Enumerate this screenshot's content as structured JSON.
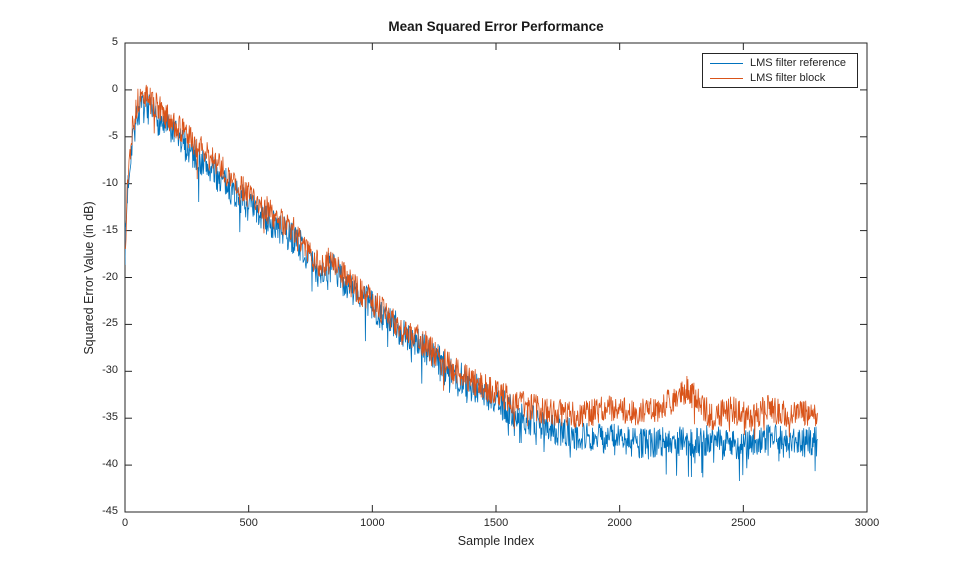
{
  "page": {
    "background": "#ffffff",
    "axis_color": "#262626"
  },
  "chart_data": {
    "type": "line",
    "title": "Mean Squared Error Performance",
    "xlabel": "Sample Index",
    "ylabel": "Squared Error Value (in dB)",
    "xlim": [
      0,
      3000
    ],
    "ylim": [
      -45,
      5
    ],
    "x_ticks": [
      0,
      500,
      1000,
      1500,
      2000,
      2500,
      3000
    ],
    "y_ticks": [
      -45,
      -40,
      -35,
      -30,
      -25,
      -20,
      -15,
      -10,
      -5,
      0,
      5
    ],
    "grid": false,
    "box": true,
    "legend": {
      "position": "top-right-inside",
      "border_color": "#262626"
    },
    "series": [
      {
        "name": "LMS filter reference",
        "color": "#0072BD",
        "x_start": 0,
        "x_end": 2800,
        "step": 2,
        "noise_db": 1.7,
        "spike_prob": 0.05,
        "spike_db": 3.2,
        "seed": 7,
        "trend": [
          [
            0,
            -17
          ],
          [
            12,
            -10
          ],
          [
            30,
            -5
          ],
          [
            55,
            -2.2
          ],
          [
            80,
            -1.8
          ],
          [
            120,
            -2.8
          ],
          [
            200,
            -4.8
          ],
          [
            300,
            -7.4
          ],
          [
            400,
            -9.8
          ],
          [
            500,
            -12.4
          ],
          [
            600,
            -14.4
          ],
          [
            700,
            -16.2
          ],
          [
            780,
            -19.4
          ],
          [
            840,
            -18.9
          ],
          [
            900,
            -20.9
          ],
          [
            1000,
            -23.1
          ],
          [
            1100,
            -25.3
          ],
          [
            1200,
            -27.2
          ],
          [
            1300,
            -29.6
          ],
          [
            1400,
            -31.5
          ],
          [
            1500,
            -33.2
          ],
          [
            1600,
            -34.8
          ],
          [
            1700,
            -35.9
          ],
          [
            1800,
            -36.6
          ],
          [
            1900,
            -37.1
          ],
          [
            2000,
            -37.3
          ],
          [
            2100,
            -37.8
          ],
          [
            2200,
            -37.2
          ],
          [
            2300,
            -37.6
          ],
          [
            2400,
            -37.3
          ],
          [
            2500,
            -37.9
          ],
          [
            2600,
            -37.2
          ],
          [
            2700,
            -37.7
          ],
          [
            2800,
            -37.4
          ]
        ]
      },
      {
        "name": "LMS filter block",
        "color": "#D95319",
        "x_start": 0,
        "x_end": 2800,
        "step": 2,
        "noise_db": 1.5,
        "spike_prob": 0.04,
        "spike_db": 2.4,
        "seed": 13,
        "trend": [
          [
            0,
            -17
          ],
          [
            12,
            -9
          ],
          [
            30,
            -4
          ],
          [
            55,
            -1
          ],
          [
            80,
            -0.6
          ],
          [
            120,
            -1.6
          ],
          [
            200,
            -3.6
          ],
          [
            300,
            -6.2
          ],
          [
            400,
            -8.6
          ],
          [
            500,
            -11.2
          ],
          [
            600,
            -13.4
          ],
          [
            700,
            -15.4
          ],
          [
            780,
            -18.6
          ],
          [
            840,
            -18.2
          ],
          [
            900,
            -20.3
          ],
          [
            1000,
            -22.6
          ],
          [
            1100,
            -24.9
          ],
          [
            1200,
            -26.8
          ],
          [
            1300,
            -29.2
          ],
          [
            1400,
            -31
          ],
          [
            1500,
            -32.3
          ],
          [
            1600,
            -33.4
          ],
          [
            1700,
            -34.2
          ],
          [
            1800,
            -34.6
          ],
          [
            1900,
            -34.3
          ],
          [
            2000,
            -33.9
          ],
          [
            2070,
            -34.5
          ],
          [
            2140,
            -34.2
          ],
          [
            2210,
            -33.1
          ],
          [
            2270,
            -31.9
          ],
          [
            2330,
            -33.4
          ],
          [
            2370,
            -34.9
          ],
          [
            2450,
            -34
          ],
          [
            2530,
            -35
          ],
          [
            2600,
            -33.9
          ],
          [
            2680,
            -34.8
          ],
          [
            2800,
            -34.4
          ]
        ]
      }
    ]
  }
}
